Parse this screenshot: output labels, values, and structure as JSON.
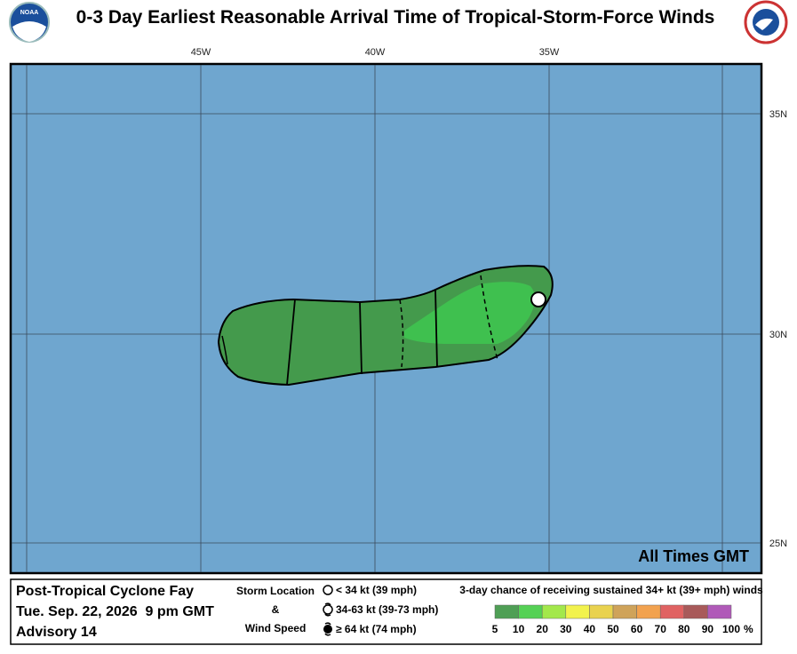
{
  "header": {
    "title": "0-3 Day Earliest Reasonable Arrival Time of Tropical-Storm-Force Winds",
    "logo_text": "NOAA"
  },
  "map": {
    "longitude_labels": [
      "45W",
      "40W",
      "35W"
    ],
    "latitude_labels": [
      "35N",
      "30N",
      "25N"
    ],
    "note": "All Times GMT"
  },
  "info": {
    "storm_name": "Post-Tropical Cyclone Fay",
    "datetime": "Tue. Sep. 22, 2026  9 pm GMT",
    "advisory": "Advisory 14"
  },
  "storm_legend": {
    "title_lines": [
      "Storm Location",
      "&",
      "Wind Speed"
    ],
    "items": [
      "< 34 kt (39 mph)",
      "34-63 kt (39-73 mph)",
      "≥ 64 kt (74 mph)"
    ]
  },
  "probability_legend": {
    "title": "3-day chance of receiving sustained 34+ kt (39+ mph) winds",
    "levels": [
      5,
      10,
      20,
      30,
      40,
      50,
      60,
      70,
      80,
      90,
      100
    ],
    "unit": "%",
    "colors": [
      "#4f9f55",
      "#55d155",
      "#a3e84b",
      "#f2f24d",
      "#e9d24f",
      "#cfa35a",
      "#f2a24f",
      "#e06262",
      "#a85a5a",
      "#b05ab8"
    ]
  }
}
